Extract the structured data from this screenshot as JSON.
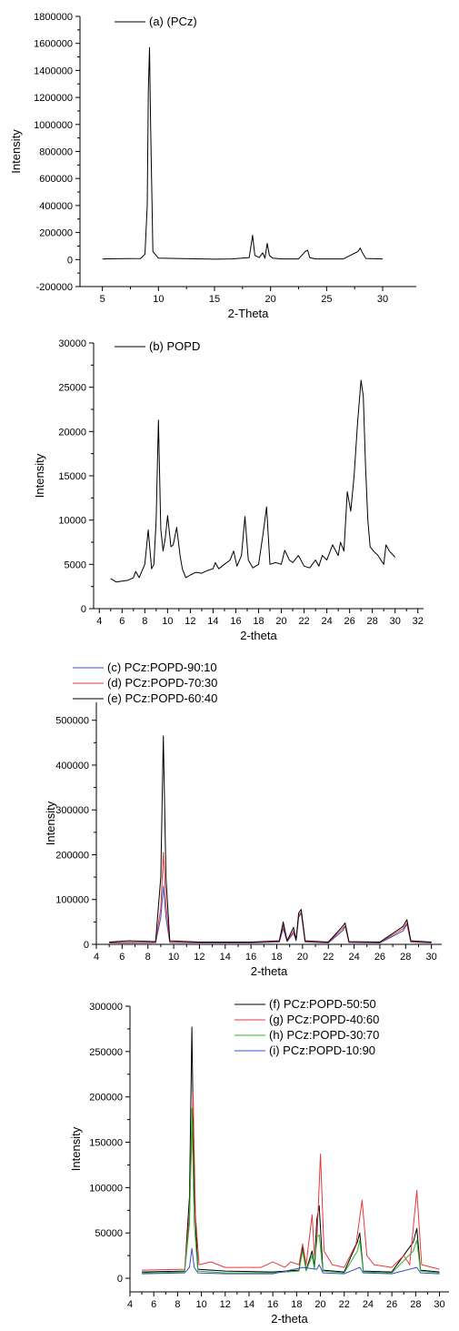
{
  "chart_data": [
    {
      "type": "line",
      "xlabel": "2-Theta",
      "ylabel": "Intensity",
      "xlim": [
        3,
        33
      ],
      "ylim": [
        -200000,
        1800000
      ],
      "xticks": [
        5,
        10,
        15,
        20,
        25,
        30
      ],
      "yticks": [
        -200000,
        0,
        200000,
        400000,
        600000,
        800000,
        1000000,
        1200000,
        1400000,
        1600000,
        1800000
      ],
      "legend_position": "top-left",
      "series": [
        {
          "name": "(a) (PCz)",
          "color": "#000000",
          "x": [
            5,
            8.4,
            8.8,
            9.0,
            9.1,
            9.2,
            9.3,
            9.5,
            10,
            15,
            16.5,
            18.1,
            18.4,
            18.6,
            19.0,
            19.3,
            19.5,
            19.7,
            19.9,
            20.2,
            21,
            22.5,
            23.1,
            23.3,
            23.5,
            24,
            26.5,
            27.8,
            28.0,
            28.2,
            28.5,
            30
          ],
          "y": [
            5000,
            8000,
            40000,
            400000,
            1250000,
            1570000,
            1000000,
            60000,
            10000,
            3000,
            5000,
            15000,
            180000,
            30000,
            15000,
            50000,
            10000,
            120000,
            30000,
            10000,
            5000,
            5000,
            60000,
            70000,
            15000,
            5000,
            5000,
            60000,
            85000,
            50000,
            8000,
            5000
          ]
        }
      ]
    },
    {
      "type": "line",
      "xlabel": "2-theta",
      "ylabel": "Intensity",
      "xlim": [
        3.5,
        32.5
      ],
      "ylim": [
        0,
        30000
      ],
      "xticks": [
        4,
        5,
        6,
        7,
        8,
        9,
        10,
        11,
        12,
        13,
        14,
        15,
        16,
        17,
        18,
        19,
        20,
        21,
        22,
        23,
        24,
        25,
        26,
        27,
        28,
        29,
        30,
        31,
        32
      ],
      "xtick_labels": [
        4,
        6,
        8,
        10,
        12,
        14,
        16,
        18,
        20,
        22,
        24,
        26,
        28,
        30,
        32
      ],
      "yticks": [
        0,
        5000,
        10000,
        15000,
        20000,
        25000,
        30000
      ],
      "legend_position": "top-left",
      "series": [
        {
          "name": "(b) POPD",
          "color": "#000000",
          "x": [
            5,
            5.5,
            6,
            6.5,
            7,
            7.2,
            7.5,
            8,
            8.3,
            8.6,
            8.8,
            9.0,
            9.2,
            9.4,
            9.6,
            9.8,
            10.0,
            10.3,
            10.5,
            10.8,
            11.1,
            11.3,
            11.6,
            12,
            12.5,
            13,
            13.5,
            14,
            14.2,
            14.5,
            15,
            15.5,
            15.8,
            16.1,
            16.5,
            16.8,
            17.1,
            17.5,
            18,
            18.4,
            18.7,
            19,
            19.5,
            20,
            20.3,
            20.7,
            21,
            21.5,
            22,
            22.5,
            23,
            23.3,
            23.6,
            24,
            24.5,
            25,
            25.2,
            25.5,
            25.8,
            26.1,
            26.4,
            26.7,
            27.0,
            27.2,
            27.4,
            27.6,
            27.8,
            28.1,
            28.5,
            29,
            29.2,
            29.5,
            30
          ],
          "y": [
            3400,
            3000,
            3100,
            3200,
            3500,
            4200,
            3500,
            5000,
            8900,
            4500,
            5000,
            10000,
            21300,
            9000,
            6500,
            8000,
            10500,
            7000,
            7200,
            9200,
            6000,
            4500,
            3500,
            3800,
            4100,
            4000,
            4300,
            4500,
            5200,
            4500,
            5000,
            5500,
            6500,
            4800,
            6000,
            10400,
            5500,
            4600,
            5000,
            8500,
            11500,
            5000,
            5200,
            5000,
            6600,
            5500,
            5200,
            6000,
            4800,
            4600,
            5500,
            4800,
            6000,
            5500,
            7200,
            6000,
            7500,
            6500,
            13200,
            11000,
            15000,
            21000,
            25800,
            24000,
            16000,
            10000,
            7000,
            6500,
            6000,
            5000,
            7200,
            6500,
            5800
          ]
        }
      ]
    },
    {
      "type": "line",
      "xlabel": "2-theta",
      "ylabel": "Intensity",
      "xlim": [
        4,
        30.8
      ],
      "ylim": [
        0,
        540000
      ],
      "xticks": [
        4,
        6,
        8,
        10,
        12,
        14,
        16,
        18,
        20,
        22,
        24,
        26,
        28,
        30
      ],
      "yticks": [
        0,
        100000,
        200000,
        300000,
        400000,
        500000
      ],
      "legend_position": "top-left",
      "series": [
        {
          "name": "(c) PCz:POPD-90:10",
          "color": "#3b4fc8",
          "x": [
            5,
            8.6,
            9.0,
            9.2,
            9.4,
            9.7,
            12,
            16,
            18.2,
            18.5,
            18.8,
            19.3,
            19.5,
            19.7,
            19.9,
            20.2,
            22,
            23.1,
            23.3,
            23.6,
            26,
            27.8,
            28.1,
            28.4,
            30
          ],
          "y": [
            3000,
            3500,
            60000,
            130000,
            60000,
            4000,
            3000,
            3000,
            5000,
            35000,
            6000,
            25000,
            8000,
            60000,
            70000,
            5000,
            3000,
            30000,
            40000,
            4000,
            3000,
            30000,
            45000,
            5000,
            3000
          ]
        },
        {
          "name": "(d) PCz:POPD-70:30",
          "color": "#e53a3a",
          "x": [
            5,
            8.6,
            9.0,
            9.2,
            9.4,
            9.7,
            12,
            16,
            18.2,
            18.5,
            18.8,
            19.3,
            19.5,
            19.7,
            19.9,
            20.2,
            22,
            23.1,
            23.3,
            23.6,
            26,
            27.8,
            28.1,
            28.4,
            30
          ],
          "y": [
            4000,
            4500,
            80000,
            205000,
            90000,
            5000,
            4000,
            4000,
            6000,
            42000,
            7000,
            30000,
            9000,
            65000,
            72000,
            6000,
            4000,
            35000,
            42000,
            5000,
            4000,
            35000,
            48000,
            6000,
            4000
          ]
        },
        {
          "name": "(e) PCz:POPD-60:40",
          "color": "#000000",
          "x": [
            5,
            6.5,
            8.6,
            9.0,
            9.2,
            9.4,
            9.7,
            12,
            16,
            18.2,
            18.5,
            18.8,
            19.3,
            19.5,
            19.7,
            19.9,
            20.2,
            22,
            23.1,
            23.3,
            23.6,
            26,
            27.8,
            28.1,
            28.4,
            30
          ],
          "y": [
            5000,
            8000,
            6000,
            150000,
            465000,
            150000,
            8000,
            5000,
            5000,
            8000,
            50000,
            8000,
            38000,
            10000,
            70000,
            78000,
            8000,
            5000,
            40000,
            48000,
            6000,
            5000,
            40000,
            55000,
            8000,
            5000
          ]
        }
      ]
    },
    {
      "type": "line",
      "xlabel": "2-theta",
      "ylabel": "Intensity",
      "xlim": [
        4,
        30.8
      ],
      "ylim": [
        -15000,
        300000
      ],
      "xticks": [
        4,
        6,
        8,
        10,
        12,
        14,
        16,
        18,
        20,
        22,
        24,
        26,
        28,
        30
      ],
      "yticks": [
        0,
        50000,
        100000,
        150000,
        200000,
        250000,
        300000
      ],
      "legend_position": "top-right",
      "series": [
        {
          "name": "(f) PCz:POPD-50:50",
          "color": "#000000",
          "x": [
            5,
            8.6,
            9.0,
            9.2,
            9.4,
            9.7,
            12,
            16,
            18.2,
            18.5,
            18.8,
            19.3,
            19.5,
            19.7,
            19.9,
            20.2,
            22,
            23.1,
            23.3,
            23.6,
            26,
            27.8,
            28.1,
            28.4,
            30
          ],
          "y": [
            7000,
            8000,
            90000,
            277000,
            90000,
            10000,
            8000,
            7000,
            9000,
            35000,
            9000,
            30000,
            12000,
            65000,
            80000,
            9000,
            7000,
            40000,
            50000,
            8000,
            7000,
            40000,
            55000,
            9000,
            7000
          ]
        },
        {
          "name": "(g) PCz:POPD-40:60",
          "color": "#e53a3a",
          "x": [
            5,
            8.6,
            9.0,
            9.3,
            9.5,
            9.8,
            10.8,
            12,
            15,
            16,
            17,
            17.5,
            18.2,
            18.5,
            18.8,
            19.3,
            19.5,
            19.7,
            20.0,
            20.3,
            21,
            22,
            23.0,
            23.5,
            23.9,
            24.5,
            26,
            27.0,
            27.5,
            28.1,
            28.5,
            30
          ],
          "y": [
            9000,
            10000,
            70000,
            205000,
            70000,
            15000,
            18000,
            12000,
            12000,
            18000,
            12000,
            18000,
            15000,
            38000,
            15000,
            70000,
            25000,
            40000,
            137000,
            30000,
            15000,
            12000,
            38000,
            86000,
            25000,
            15000,
            12000,
            25000,
            15000,
            97000,
            15000,
            10000
          ]
        },
        {
          "name": "(h) PCz:POPD-30:70",
          "color": "#2fb52f",
          "x": [
            5,
            8.6,
            9.0,
            9.2,
            9.4,
            9.7,
            12,
            16,
            18.2,
            18.5,
            18.8,
            19.3,
            19.5,
            19.7,
            19.9,
            20.2,
            22,
            23.1,
            23.3,
            23.6,
            26,
            27.8,
            28.1,
            28.4,
            30
          ],
          "y": [
            6000,
            7000,
            60000,
            187000,
            60000,
            8000,
            6000,
            6000,
            8000,
            30000,
            8000,
            25000,
            10000,
            45000,
            48000,
            8000,
            6000,
            30000,
            42000,
            7000,
            6000,
            30000,
            42000,
            8000,
            6000
          ]
        },
        {
          "name": "(i) PCz:POPD-10:90",
          "color": "#3b4fc8",
          "x": [
            5,
            8.6,
            9.0,
            9.2,
            9.4,
            9.7,
            12,
            16,
            18.5,
            19.7,
            19.9,
            20.2,
            22,
            23.3,
            23.6,
            26,
            28.1,
            28.4,
            30
          ],
          "y": [
            5000,
            6000,
            12000,
            33000,
            12000,
            6000,
            5000,
            5000,
            12000,
            10000,
            15000,
            6000,
            5000,
            12000,
            6000,
            5000,
            12000,
            6000,
            5000
          ]
        }
      ]
    }
  ]
}
